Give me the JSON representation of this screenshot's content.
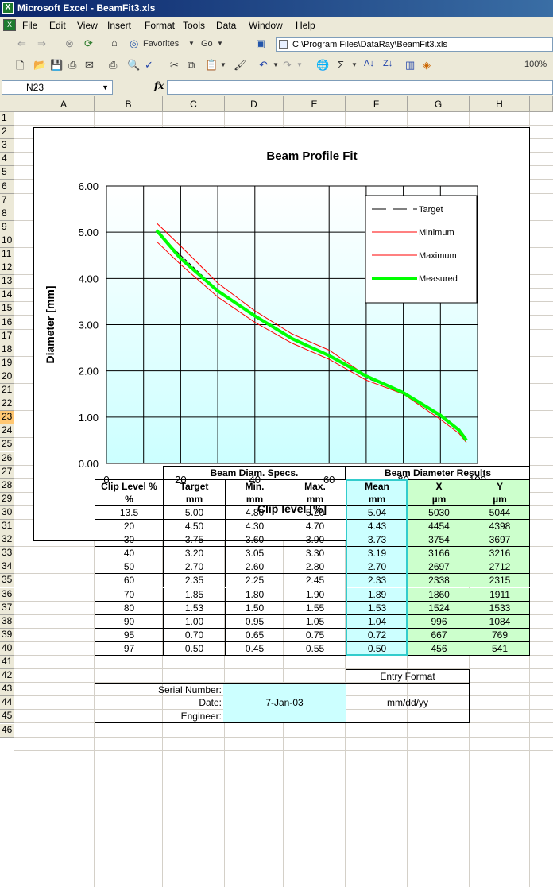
{
  "window": {
    "title": "Microsoft Excel - BeamFit3.xls"
  },
  "menu": [
    "File",
    "Edit",
    "View",
    "Insert",
    "Format",
    "Tools",
    "Data",
    "Window",
    "Help"
  ],
  "web_toolbar": {
    "favorites": "Favorites",
    "go": "Go",
    "address": "C:\\Program Files\\DataRay\\BeamFit3.xls"
  },
  "std_toolbar": {
    "zoom": "100%"
  },
  "formula_bar": {
    "name_box": "N23",
    "fx": "fx",
    "content": ""
  },
  "columns": [
    "A",
    "B",
    "C",
    "D",
    "E",
    "F",
    "G",
    "H"
  ],
  "rows": [
    "1",
    "2",
    "3",
    "4",
    "5",
    "6",
    "7",
    "8",
    "9",
    "10",
    "11",
    "12",
    "13",
    "14",
    "15",
    "16",
    "17",
    "18",
    "19",
    "20",
    "21",
    "22",
    "23",
    "24",
    "25",
    "26",
    "27",
    "28",
    "29",
    "30",
    "31",
    "32",
    "33",
    "34",
    "35",
    "36",
    "37",
    "38",
    "39",
    "40",
    "41",
    "42",
    "43",
    "44",
    "45",
    "46"
  ],
  "selected_row": "23",
  "chart_data": {
    "type": "line",
    "title": "Beam Profile Fit",
    "xlabel": "Clip level [%]",
    "ylabel": "Diameter [mm]",
    "xlim": [
      0,
      100
    ],
    "ylim": [
      0,
      6
    ],
    "x_ticks": [
      "0",
      "20",
      "40",
      "60",
      "80",
      "100"
    ],
    "y_ticks": [
      "0.00",
      "1.00",
      "2.00",
      "3.00",
      "4.00",
      "5.00",
      "6.00"
    ],
    "x": [
      13.5,
      20,
      30,
      40,
      50,
      60,
      70,
      80,
      90,
      95,
      97
    ],
    "series": [
      {
        "name": "Target",
        "values": [
          5.0,
          4.5,
          3.75,
          3.2,
          2.7,
          2.35,
          1.85,
          1.53,
          1.0,
          0.7,
          0.5
        ],
        "color": "#000000",
        "style": "dashed"
      },
      {
        "name": "Minimum",
        "values": [
          4.8,
          4.3,
          3.6,
          3.05,
          2.6,
          2.25,
          1.8,
          1.5,
          0.95,
          0.65,
          0.45
        ],
        "color": "#ff0000",
        "style": "solid"
      },
      {
        "name": "Maximum",
        "values": [
          5.2,
          4.7,
          3.9,
          3.3,
          2.8,
          2.45,
          1.9,
          1.55,
          1.05,
          0.75,
          0.55
        ],
        "color": "#ff0000",
        "style": "solid"
      },
      {
        "name": "Measured",
        "values": [
          5.04,
          4.43,
          3.73,
          3.19,
          2.7,
          2.33,
          1.89,
          1.53,
          1.04,
          0.72,
          0.5
        ],
        "color": "#00ff00",
        "style": "thick"
      }
    ],
    "grid": true,
    "legend": "top-right"
  },
  "table": {
    "group_specs": "Beam Diam. Specs.",
    "group_results": "Beam Diameter Results",
    "headers": [
      "Clip Level %",
      "Target",
      "Min.",
      "Max.",
      "Mean",
      "X",
      "Y"
    ],
    "units": [
      "%",
      "mm",
      "mm",
      "mm",
      "mm",
      "µm",
      "µm"
    ],
    "rows": [
      [
        "13.5",
        "5.00",
        "4.80",
        "5.20",
        "5.04",
        "5030",
        "5044"
      ],
      [
        "20",
        "4.50",
        "4.30",
        "4.70",
        "4.43",
        "4454",
        "4398"
      ],
      [
        "30",
        "3.75",
        "3.60",
        "3.90",
        "3.73",
        "3754",
        "3697"
      ],
      [
        "40",
        "3.20",
        "3.05",
        "3.30",
        "3.19",
        "3166",
        "3216"
      ],
      [
        "50",
        "2.70",
        "2.60",
        "2.80",
        "2.70",
        "2697",
        "2712"
      ],
      [
        "60",
        "2.35",
        "2.25",
        "2.45",
        "2.33",
        "2338",
        "2315"
      ],
      [
        "70",
        "1.85",
        "1.80",
        "1.90",
        "1.89",
        "1860",
        "1911"
      ],
      [
        "80",
        "1.53",
        "1.50",
        "1.55",
        "1.53",
        "1524",
        "1533"
      ],
      [
        "90",
        "1.00",
        "0.95",
        "1.05",
        "1.04",
        "996",
        "1084"
      ],
      [
        "95",
        "0.70",
        "0.65",
        "0.75",
        "0.72",
        "667",
        "769"
      ],
      [
        "97",
        "0.50",
        "0.45",
        "0.55",
        "0.50",
        "456",
        "541"
      ]
    ]
  },
  "info": {
    "entry_format_label": "Entry Format",
    "serial_label": "Serial Number:",
    "date_label": "Date:",
    "date_value": "7-Jan-03",
    "date_format": "mm/dd/yy",
    "engineer_label": "Engineer:"
  }
}
